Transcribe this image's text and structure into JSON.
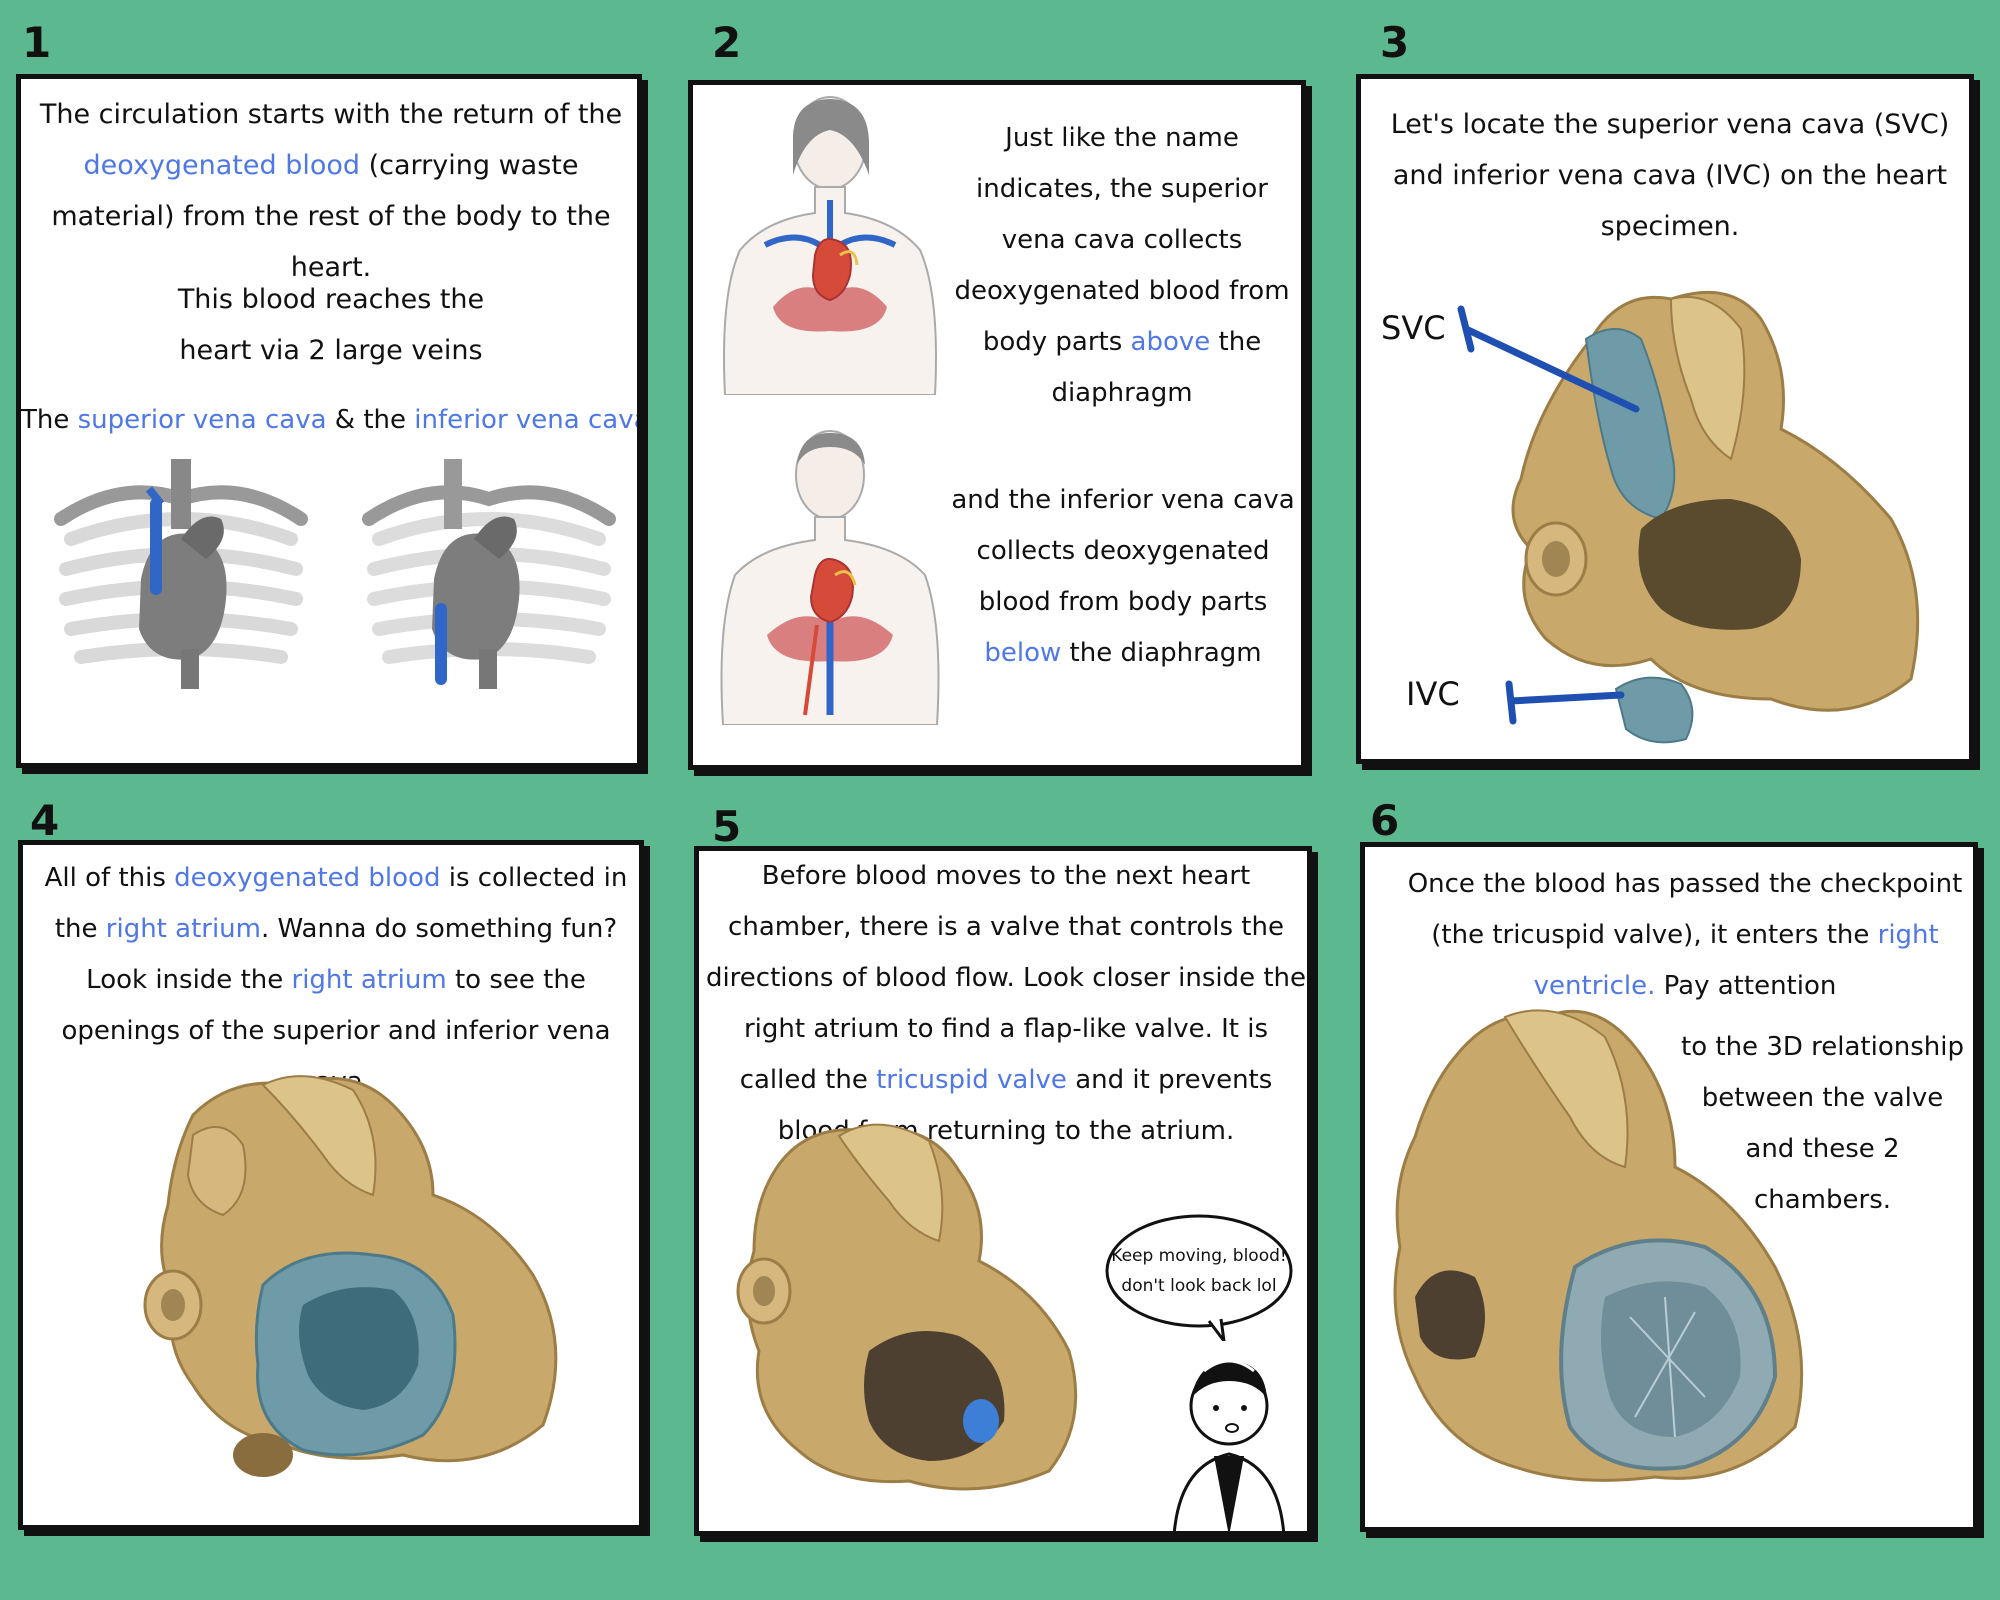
{
  "panels": [
    {
      "number": "1",
      "p1": [
        "The circulation starts with the return of the ",
        "deoxygenated blood",
        " (carrying waste material) from the rest of the body to the heart."
      ],
      "p2": "This blood reaches the heart via 2 large veins",
      "p3": [
        "The ",
        "superior vena cava",
        " & the ",
        "inferior vena cava"
      ]
    },
    {
      "number": "2",
      "p1": [
        "Just like the name indicates, the superior vena cava collects deoxygenated blood from body parts ",
        "above",
        " the diaphragm"
      ],
      "p2": [
        "and the inferior vena cava collects deoxygenated blood from body parts ",
        "below",
        " the diaphragm"
      ]
    },
    {
      "number": "3",
      "p1": "Let's locate the superior vena cava (SVC) and inferior vena cava (IVC) on the heart specimen.",
      "svc_label": "SVC",
      "ivc_label": "IVC"
    },
    {
      "number": "4",
      "p1": [
        "All of this ",
        "deoxygenated blood",
        " is collected in the ",
        "right atrium",
        ". Wanna do something fun? Look inside the ",
        "right atrium",
        " to see the openings of the superior and inferior vena cava."
      ]
    },
    {
      "number": "5",
      "p1": [
        "Before blood moves to the next heart chamber, there is a valve that controls the directions of blood flow. Look closer inside the right atrium to find a flap-like valve. It is called the ",
        "tricuspid valve",
        " and it prevents blood from returning to the atrium."
      ],
      "bubble_line1": "Keep moving, blood!",
      "bubble_line2": "don't look back lol"
    },
    {
      "number": "6",
      "p1": [
        "Once the blood has passed the checkpoint (the tricuspid valve), it enters the ",
        "right ventricle.",
        " Pay attention"
      ],
      "p2": "to the 3D relationship between the valve and these 2 chambers."
    }
  ],
  "colors": {
    "background": "#5bb88f",
    "highlight": "#4f78e6",
    "vein_blue": "#2f66c8",
    "specimen_tan": "#c9a86b",
    "dye_blue": "#6f9aa8"
  }
}
